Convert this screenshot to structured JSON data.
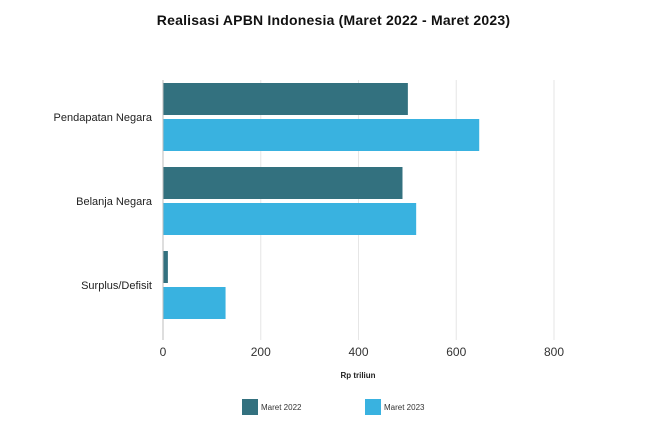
{
  "chart_data": {
    "type": "bar",
    "orientation": "horizontal",
    "title": "Realisasi APBN Indonesia (Maret 2022 - Maret 2023)",
    "xlabel": "Rp triliun",
    "ylabel": "",
    "categories": [
      "Pendapatan Negara",
      "Belanja Negara",
      "Surplus/Defisit"
    ],
    "series": [
      {
        "name": "Maret 2022",
        "values": [
          501,
          490,
          10
        ],
        "color": "#33717f"
      },
      {
        "name": "Maret 2023",
        "values": [
          647,
          518,
          128
        ],
        "color": "#39b2e0"
      }
    ],
    "xlim": [
      0,
      800
    ],
    "xticks": [
      "0",
      "200",
      "400",
      "600",
      "800"
    ],
    "grid": true,
    "legend_position": "bottom"
  }
}
